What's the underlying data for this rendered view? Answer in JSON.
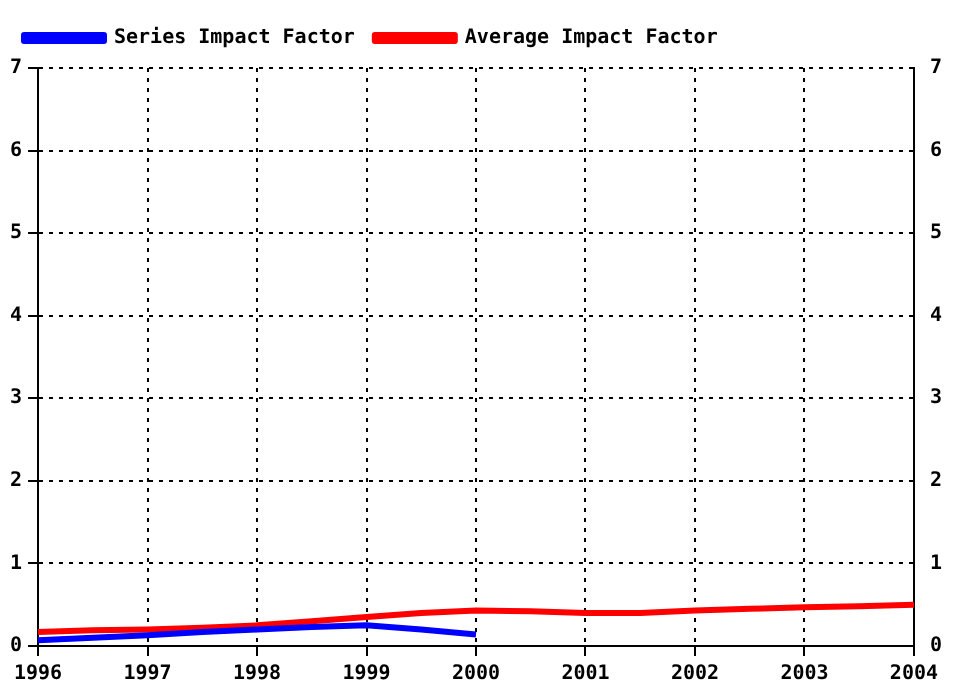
{
  "chart_data": {
    "type": "line",
    "xlim": [
      1996,
      2004
    ],
    "xticks": [
      1996,
      1997,
      1998,
      1999,
      2000,
      2001,
      2002,
      2003,
      2004
    ],
    "ylim": [
      0,
      7
    ],
    "yticks": [
      0,
      1,
      2,
      3,
      4,
      5,
      6,
      7
    ],
    "y2lim": [
      0,
      7
    ],
    "y2ticks": [
      0,
      1,
      2,
      3,
      4,
      5,
      6,
      7
    ],
    "grid": true,
    "legend": "top left",
    "marker": "none",
    "line_style": "solid",
    "series": [
      {
        "name": "Series Impact Factor",
        "color": "#0000ff",
        "x": [
          1996,
          1996.5,
          1997,
          1997.5,
          1998,
          1998.5,
          1999,
          1999.5,
          2000
        ],
        "values": [
          0.07,
          0.1,
          0.13,
          0.17,
          0.2,
          0.23,
          0.25,
          0.2,
          0.14
        ]
      },
      {
        "name": "Average Impact Factor",
        "color": "#ff0000",
        "x": [
          1996,
          1996.5,
          1997,
          1997.5,
          1998,
          1998.5,
          1999,
          1999.5,
          2000,
          2000.5,
          2001,
          2001.5,
          2002,
          2002.5,
          2003,
          2003.5,
          2004
        ],
        "values": [
          0.17,
          0.19,
          0.2,
          0.22,
          0.25,
          0.3,
          0.35,
          0.4,
          0.43,
          0.42,
          0.4,
          0.4,
          0.43,
          0.45,
          0.47,
          0.48,
          0.5
        ]
      }
    ]
  }
}
